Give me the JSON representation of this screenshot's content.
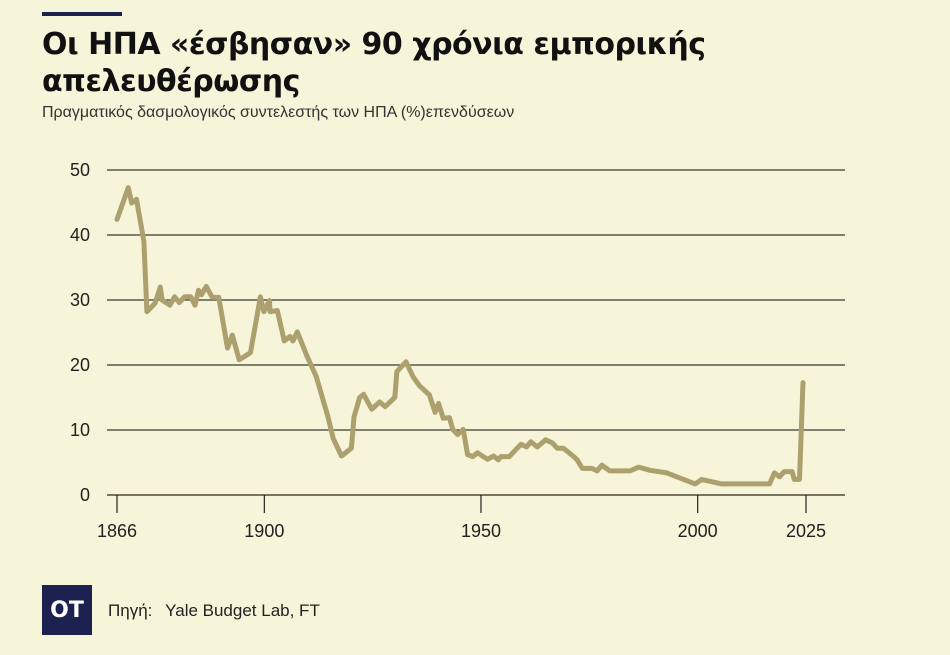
{
  "title": "Οι ΗΠΑ «έσβησαν» 90 χρόνια εμπορικής απελευθέρωσης",
  "subtitle": "Πραγματικός δασμολογικός συντελεστής των ΗΠΑ (%)επενδύσεων",
  "logo_text": "OT",
  "source_label": "Πηγή:",
  "source_value": "Yale Budget Lab, FT",
  "chart_data": {
    "type": "line",
    "title": "Οι ΗΠΑ «έσβησαν» 90 χρόνια εμπορικής απελευθέρωσης",
    "ylabel": "Πραγματικός δασμολογικός συντελεστής των ΗΠΑ (%)",
    "xlabel": "",
    "xlim": [
      1866,
      2025
    ],
    "ylim": [
      0,
      50
    ],
    "x_ticks": [
      1866,
      1900,
      1950,
      2000,
      2025
    ],
    "y_ticks": [
      0,
      10,
      20,
      30,
      40,
      50
    ],
    "grid": true,
    "line_color": "#ada06f",
    "series": [
      {
        "name": "Πραγματικός δασμολογικός συντελεστής",
        "points": [
          [
            1866,
            42.4
          ],
          [
            1868.6,
            47.3
          ],
          [
            1869.4,
            44.9
          ],
          [
            1870.5,
            45.5
          ],
          [
            1872.2,
            39
          ],
          [
            1872.9,
            28.2
          ],
          [
            1874.8,
            29.5
          ],
          [
            1876,
            32
          ],
          [
            1876.4,
            30
          ],
          [
            1878.2,
            29.2
          ],
          [
            1879.3,
            30.5
          ],
          [
            1880.4,
            29.6
          ],
          [
            1881.6,
            30.5
          ],
          [
            1883,
            30.5
          ],
          [
            1884,
            29.2
          ],
          [
            1884.8,
            31.5
          ],
          [
            1885.5,
            30.8
          ],
          [
            1886.6,
            32.1
          ],
          [
            1888,
            30.4
          ],
          [
            1889.5,
            30.4
          ],
          [
            1891.5,
            22.6
          ],
          [
            1892.6,
            24.6
          ],
          [
            1894.2,
            20.8
          ],
          [
            1896.8,
            21.9
          ],
          [
            1899.1,
            30.5
          ],
          [
            1899.9,
            28.2
          ],
          [
            1901.2,
            29.9
          ],
          [
            1901.3,
            28.2
          ],
          [
            1903,
            28.4
          ],
          [
            1904.6,
            23.7
          ],
          [
            1905.9,
            24.4
          ],
          [
            1906.6,
            23.7
          ],
          [
            1907.6,
            25.1
          ],
          [
            1909.9,
            21.3
          ],
          [
            1912,
            18.2
          ],
          [
            1914.7,
            12
          ],
          [
            1915.9,
            8.7
          ],
          [
            1917.8,
            6
          ],
          [
            1920.1,
            7.2
          ],
          [
            1920.7,
            12
          ],
          [
            1922,
            15
          ],
          [
            1922.9,
            15.5
          ],
          [
            1924.8,
            13.2
          ],
          [
            1926.6,
            14.3
          ],
          [
            1927.9,
            13.6
          ],
          [
            1930.1,
            15
          ],
          [
            1930.6,
            19
          ],
          [
            1932.7,
            20.5
          ],
          [
            1934.3,
            18.2
          ],
          [
            1935.8,
            16.8
          ],
          [
            1938.1,
            15.4
          ],
          [
            1939.4,
            12.7
          ],
          [
            1940.2,
            14.1
          ],
          [
            1941.3,
            11.8
          ],
          [
            1942.7,
            11.9
          ],
          [
            1943.5,
            10.1
          ],
          [
            1944.6,
            9.3
          ],
          [
            1945.9,
            10.1
          ],
          [
            1946.9,
            6.2
          ],
          [
            1948.1,
            5.9
          ],
          [
            1949.2,
            6.5
          ],
          [
            1951.5,
            5.5
          ],
          [
            1952.9,
            6
          ],
          [
            1954,
            5.4
          ],
          [
            1954.6,
            5.9
          ],
          [
            1956.5,
            5.9
          ],
          [
            1959.2,
            7.8
          ],
          [
            1960.5,
            7.4
          ],
          [
            1961.5,
            8.2
          ],
          [
            1963,
            7.4
          ],
          [
            1964.9,
            8.5
          ],
          [
            1966.5,
            8
          ],
          [
            1967.6,
            7.2
          ],
          [
            1969,
            7.2
          ],
          [
            1971.4,
            5.9
          ],
          [
            1972.2,
            5.4
          ],
          [
            1973.4,
            4.1
          ],
          [
            1975.6,
            4.1
          ],
          [
            1976.8,
            3.7
          ],
          [
            1977.9,
            4.6
          ],
          [
            1979.7,
            3.7
          ],
          [
            1984.4,
            3.7
          ],
          [
            1986.4,
            4.3
          ],
          [
            1989,
            3.8
          ],
          [
            1992.9,
            3.4
          ],
          [
            1999.4,
            1.7
          ],
          [
            2000.9,
            2.4
          ],
          [
            2005.5,
            1.7
          ],
          [
            2016.6,
            1.7
          ],
          [
            2017.7,
            3.4
          ],
          [
            2018.9,
            2.8
          ],
          [
            2020,
            3.6
          ],
          [
            2021.8,
            3.6
          ],
          [
            2022.3,
            2.4
          ],
          [
            2023.5,
            2.4
          ],
          [
            2024.3,
            17.3
          ]
        ]
      }
    ]
  }
}
